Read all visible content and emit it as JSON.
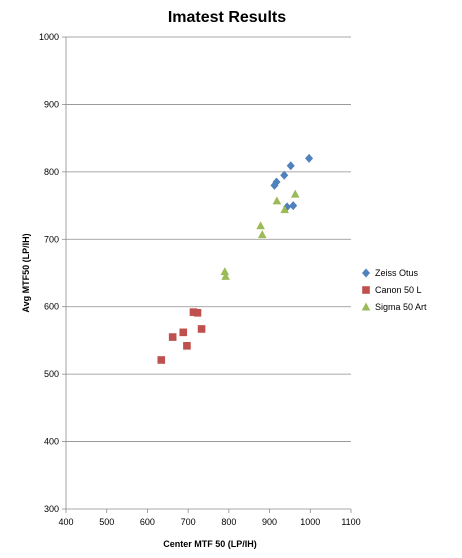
{
  "chart_data": {
    "type": "scatter",
    "title": "Imatest Results",
    "xlabel": "Center MTF 50 (LP/IH)",
    "ylabel": "Avg MTF50 (LP/IH)",
    "xlim": [
      400,
      1100
    ],
    "ylim": [
      300,
      1000
    ],
    "x_ticks": [
      400,
      500,
      600,
      700,
      800,
      900,
      1000,
      1100
    ],
    "y_ticks": [
      300,
      400,
      500,
      600,
      700,
      800,
      900,
      1000
    ],
    "grid": "horizontal",
    "legend_position": "right",
    "series": [
      {
        "name": "Zeiss Otus",
        "color": "#4F81BD",
        "marker": "diamond",
        "points": [
          {
            "x": 997,
            "y": 820
          },
          {
            "x": 952,
            "y": 809
          },
          {
            "x": 936,
            "y": 795
          },
          {
            "x": 917,
            "y": 785
          },
          {
            "x": 912,
            "y": 780
          },
          {
            "x": 958,
            "y": 750
          },
          {
            "x": 943,
            "y": 748
          }
        ]
      },
      {
        "name": "Canon 50 L",
        "color": "#C0504D",
        "marker": "square",
        "points": [
          {
            "x": 634,
            "y": 521
          },
          {
            "x": 662,
            "y": 555
          },
          {
            "x": 688,
            "y": 562
          },
          {
            "x": 697,
            "y": 542
          },
          {
            "x": 713,
            "y": 592
          },
          {
            "x": 723,
            "y": 591
          },
          {
            "x": 733,
            "y": 567
          }
        ]
      },
      {
        "name": "Sigma 50 Art",
        "color": "#9BBB59",
        "marker": "triangle",
        "points": [
          {
            "x": 790,
            "y": 652
          },
          {
            "x": 792,
            "y": 645
          },
          {
            "x": 878,
            "y": 720
          },
          {
            "x": 882,
            "y": 707
          },
          {
            "x": 918,
            "y": 757
          },
          {
            "x": 937,
            "y": 744
          },
          {
            "x": 963,
            "y": 767
          }
        ]
      }
    ]
  }
}
